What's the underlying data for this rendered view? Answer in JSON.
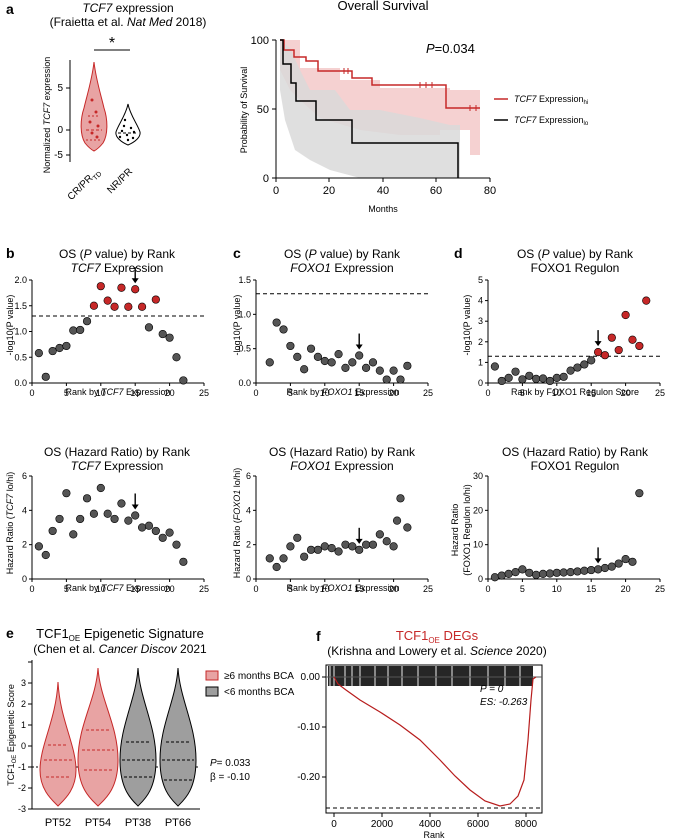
{
  "colors": {
    "red": "#c62828",
    "red_fill": "#e8a3a3",
    "red_band": "#f3c9c9",
    "grey_fill": "#9e9e9e",
    "grey_band": "#d9d9d9",
    "black": "#000000"
  },
  "panels": {
    "a": {
      "letter": "a",
      "violin": {
        "title_italic": "TCF7",
        "title_rest": " expression",
        "citation_pre": "(Fraietta et al. ",
        "citation_journal": "Nat Med",
        "citation_post": " 2018)",
        "significance": "*",
        "ylabel_pre": "Normalized ",
        "ylabel_italic": "TCF7",
        "ylabel_post": " expression",
        "yticks": [
          "-5",
          "0",
          "5"
        ],
        "groups": [
          "CR/PR",
          "NR/PR"
        ],
        "group_sub": "TD"
      },
      "km": {
        "title": "Overall Survival",
        "pvalue_italic": "P",
        "pvalue_rest": "=0.034",
        "ylabel": "Probability of Survival",
        "xlabel": "Months",
        "xticks": [
          "0",
          "20",
          "40",
          "60",
          "80"
        ],
        "yticks": [
          "0",
          "50",
          "100"
        ],
        "legend": [
          {
            "italic": "TCF7",
            "text": " Expression",
            "sub": "hi"
          },
          {
            "italic": "TCF7",
            "text": " Expression",
            "sub": "lo"
          }
        ]
      }
    },
    "b": {
      "letter": "b",
      "top_title": "OS (",
      "top_title_italic": "P",
      "top_title_post": " value) by Rank",
      "top_subtitle_italic": "TCF7",
      "top_subtitle_rest": " Expression",
      "top_ylabel": "-log10(P value)",
      "top_xlabel_pre": "Rank by ",
      "top_xlabel_italic": "TCF7",
      "top_xlabel_post": " Expression",
      "bottom_title": "OS (Hazard Ratio) by Rank",
      "bottom_subtitle_italic": "TCF7",
      "bottom_subtitle_rest": " Expression",
      "bottom_ylabel_pre": "Hazard Ratio (",
      "bottom_ylabel_italic": "TCF7",
      "bottom_ylabel_post": " lo/hi)"
    },
    "c": {
      "letter": "c",
      "top_title": "OS (",
      "top_title_italic": "P",
      "top_title_post": " value) by Rank",
      "top_subtitle_italic": "FOXO1",
      "top_subtitle_rest": " Expression",
      "top_ylabel": "-log10(P value)",
      "top_xlabel_pre": "Rank by ",
      "top_xlabel_italic": "FOXO1",
      "top_xlabel_post": " Expression",
      "bottom_title": "OS (Hazard Ratio) by Rank",
      "bottom_subtitle_italic": "FOXO1",
      "bottom_subtitle_rest": " Expression",
      "bottom_ylabel_pre": "Hazard Ratio (",
      "bottom_ylabel_italic": "FOXO1",
      "bottom_ylabel_post": " lo/hi)"
    },
    "d": {
      "letter": "d",
      "top_title": "OS (",
      "top_title_italic": "P",
      "top_title_post": " value) by Rank",
      "top_subtitle": "FOXO1 Regulon",
      "top_ylabel": "-log10(P value)",
      "top_xlabel": "Rank by FOXO1 Regulon Score",
      "bottom_title": "OS (Hazard Ratio) by Rank",
      "bottom_subtitle": "FOXO1 Regulon",
      "bottom_ylabel_1": "Hazard Ratio",
      "bottom_ylabel_2": "(FOXO1 Regulon lo/hi)"
    },
    "e": {
      "letter": "e",
      "title_pre": "TCF1",
      "title_sub": "OE",
      "title_post": " Epigenetic Signature",
      "citation_pre": "(Chen et al. ",
      "citation_journal": "Cancer Discov",
      "citation_post": " 2021",
      "ylabel_pre": "TCF1",
      "ylabel_sub": "OE",
      "ylabel_post": " Epigenetic Score",
      "legend": [
        "≥6 months BCA",
        "<6 months BCA"
      ],
      "stat_p": "= 0.033",
      "stat_p_italic": "P",
      "stat_beta": "β = -0.10",
      "groups": [
        "PT52",
        "PT54",
        "PT38",
        "PT66"
      ],
      "yticks": [
        "-3",
        "-2",
        "-1",
        "0",
        "1",
        "2",
        "3"
      ]
    },
    "f": {
      "letter": "f",
      "title_pre": "TCF1",
      "title_sub": "OE",
      "title_post": " DEGs",
      "citation_pre": "(Krishna and Lowery et al. ",
      "citation_journal": "Science",
      "citation_post": " 2020)",
      "stat_p": "P = 0",
      "stat_es": "ES: -0.263",
      "xlabel": "Rank",
      "xticks": [
        "0",
        "2000",
        "4000",
        "6000",
        "8000"
      ],
      "yticks": [
        "0.00",
        "-0.10",
        "-0.20"
      ]
    }
  },
  "chart_data": [
    {
      "type": "scatter",
      "id": "b_top",
      "title": "OS (P value) by Rank TCF7 Expression",
      "xlabel": "Rank by TCF7 Expression",
      "ylabel": "-log10(P value)",
      "xlim": [
        0,
        25
      ],
      "ylim": [
        0,
        2.0
      ],
      "xticks": [
        0,
        5,
        10,
        15,
        20,
        25
      ],
      "yticks": [
        0.0,
        0.5,
        1.0,
        1.5,
        2.0
      ],
      "threshold": 1.3,
      "arrow_rank": 15,
      "points": [
        [
          1,
          0.58
        ],
        [
          2,
          0.12
        ],
        [
          3,
          0.62
        ],
        [
          4,
          0.68
        ],
        [
          5,
          0.72
        ],
        [
          6,
          1.02
        ],
        [
          7,
          1.03
        ],
        [
          8,
          1.2
        ],
        [
          9,
          1.5
        ],
        [
          10,
          1.88
        ],
        [
          11,
          1.6
        ],
        [
          12,
          1.48
        ],
        [
          13,
          1.85
        ],
        [
          14,
          1.48
        ],
        [
          15,
          1.82
        ],
        [
          16,
          1.48
        ],
        [
          17,
          1.08
        ],
        [
          18,
          1.62
        ],
        [
          19,
          0.95
        ],
        [
          20,
          0.88
        ],
        [
          21,
          0.5
        ],
        [
          22,
          0.05
        ]
      ],
      "significant_ranks": [
        9,
        10,
        11,
        12,
        13,
        14,
        15,
        16,
        18
      ]
    },
    {
      "type": "scatter",
      "id": "b_bottom",
      "title": "OS (Hazard Ratio) by Rank TCF7 Expression",
      "xlabel": "Rank by TCF7 Expression",
      "ylabel": "Hazard Ratio (TCF7 lo/hi)",
      "xlim": [
        0,
        25
      ],
      "ylim": [
        0,
        6
      ],
      "xticks": [
        0,
        5,
        10,
        15,
        20,
        25
      ],
      "yticks": [
        0,
        2,
        4,
        6
      ],
      "arrow_rank": 15,
      "points": [
        [
          1,
          1.9
        ],
        [
          2,
          1.4
        ],
        [
          3,
          2.8
        ],
        [
          4,
          3.5
        ],
        [
          5,
          5.0
        ],
        [
          6,
          2.6
        ],
        [
          7,
          3.5
        ],
        [
          8,
          4.7
        ],
        [
          9,
          3.8
        ],
        [
          10,
          5.3
        ],
        [
          11,
          3.8
        ],
        [
          12,
          3.5
        ],
        [
          13,
          4.4
        ],
        [
          14,
          3.4
        ],
        [
          15,
          3.7
        ],
        [
          16,
          3.0
        ],
        [
          17,
          3.1
        ],
        [
          18,
          2.8
        ],
        [
          19,
          2.4
        ],
        [
          20,
          2.7
        ],
        [
          21,
          2.0
        ],
        [
          22,
          1.0
        ]
      ]
    },
    {
      "type": "scatter",
      "id": "c_top",
      "title": "OS (P value) by Rank FOXO1 Expression",
      "xlabel": "Rank by FOXO1 Expression",
      "ylabel": "-log10(P value)",
      "xlim": [
        0,
        25
      ],
      "ylim": [
        0,
        1.5
      ],
      "xticks": [
        0,
        5,
        10,
        15,
        20,
        25
      ],
      "yticks": [
        0.0,
        0.5,
        1.0,
        1.5
      ],
      "threshold": 1.3,
      "arrow_rank": 15,
      "points": [
        [
          2,
          0.3
        ],
        [
          3,
          0.88
        ],
        [
          4,
          0.78
        ],
        [
          5,
          0.54
        ],
        [
          6,
          0.38
        ],
        [
          7,
          0.2
        ],
        [
          8,
          0.5
        ],
        [
          9,
          0.38
        ],
        [
          10,
          0.32
        ],
        [
          11,
          0.3
        ],
        [
          12,
          0.42
        ],
        [
          13,
          0.22
        ],
        [
          14,
          0.3
        ],
        [
          15,
          0.4
        ],
        [
          16,
          0.22
        ],
        [
          17,
          0.3
        ],
        [
          18,
          0.18
        ],
        [
          19,
          0.05
        ],
        [
          20,
          0.18
        ],
        [
          21,
          0.05
        ],
        [
          22,
          0.25
        ]
      ]
    },
    {
      "type": "scatter",
      "id": "c_bottom",
      "title": "OS (Hazard Ratio) by Rank FOXO1 Expression",
      "xlabel": "Rank by FOXO1 Expression",
      "ylabel": "Hazard Ratio (FOXO1 lo/hi)",
      "xlim": [
        0,
        25
      ],
      "ylim": [
        0,
        6
      ],
      "xticks": [
        0,
        5,
        10,
        15,
        20,
        25
      ],
      "yticks": [
        0,
        2,
        4,
        6
      ],
      "arrow_rank": 15,
      "points": [
        [
          2,
          1.2
        ],
        [
          3,
          0.7
        ],
        [
          4,
          1.2
        ],
        [
          5,
          1.9
        ],
        [
          6,
          2.4
        ],
        [
          7,
          1.3
        ],
        [
          8,
          1.7
        ],
        [
          9,
          1.7
        ],
        [
          10,
          1.9
        ],
        [
          11,
          1.8
        ],
        [
          12,
          1.6
        ],
        [
          13,
          2.0
        ],
        [
          14,
          1.9
        ],
        [
          15,
          1.7
        ],
        [
          16,
          2.0
        ],
        [
          17,
          2.0
        ],
        [
          18,
          2.6
        ],
        [
          19,
          2.2
        ],
        [
          20,
          1.9
        ],
        [
          21,
          4.7
        ],
        [
          22,
          3.0
        ],
        [
          20.5,
          3.4
        ]
      ]
    },
    {
      "type": "scatter",
      "id": "d_top",
      "title": "OS (P value) by Rank FOXO1 Regulon",
      "xlabel": "Rank by FOXO1 Regulon Score",
      "ylabel": "-log10(P value)",
      "xlim": [
        0,
        25
      ],
      "ylim": [
        0,
        5
      ],
      "xticks": [
        0,
        5,
        10,
        15,
        20,
        25
      ],
      "yticks": [
        0,
        1,
        2,
        3,
        4,
        5
      ],
      "threshold": 1.3,
      "arrow_rank": 16,
      "points": [
        [
          1,
          0.8
        ],
        [
          2,
          0.1
        ],
        [
          3,
          0.25
        ],
        [
          4,
          0.55
        ],
        [
          5,
          0.18
        ],
        [
          6,
          0.35
        ],
        [
          7,
          0.2
        ],
        [
          8,
          0.22
        ],
        [
          9,
          0.1
        ],
        [
          10,
          0.25
        ],
        [
          11,
          0.3
        ],
        [
          12,
          0.6
        ],
        [
          13,
          0.75
        ],
        [
          14,
          0.9
        ],
        [
          15,
          1.1
        ],
        [
          16,
          1.5
        ],
        [
          17,
          1.35
        ],
        [
          18,
          2.2
        ],
        [
          19,
          1.6
        ],
        [
          20,
          3.3
        ],
        [
          21,
          2.1
        ],
        [
          22,
          1.8
        ],
        [
          23,
          4.0
        ]
      ],
      "significant_ranks": [
        16,
        17,
        18,
        19,
        20,
        21,
        22,
        23
      ]
    },
    {
      "type": "scatter",
      "id": "d_bottom",
      "title": "OS (Hazard Ratio) by Rank FOXO1 Regulon",
      "xlabel": "",
      "ylabel": "Hazard Ratio (FOXO1 Regulon lo/hi)",
      "xlim": [
        0,
        25
      ],
      "ylim": [
        0,
        30
      ],
      "xticks": [
        0,
        5,
        10,
        15,
        20,
        25
      ],
      "yticks": [
        0,
        10,
        20,
        30
      ],
      "arrow_rank": 16,
      "points": [
        [
          1,
          0.5
        ],
        [
          2,
          1.0
        ],
        [
          3,
          1.5
        ],
        [
          4,
          2.0
        ],
        [
          5,
          2.8
        ],
        [
          6,
          1.8
        ],
        [
          7,
          1.2
        ],
        [
          8,
          1.5
        ],
        [
          9,
          1.6
        ],
        [
          10,
          1.8
        ],
        [
          11,
          1.9
        ],
        [
          12,
          2.0
        ],
        [
          13,
          2.2
        ],
        [
          14,
          2.4
        ],
        [
          15,
          2.6
        ],
        [
          16,
          2.8
        ],
        [
          17,
          3.2
        ],
        [
          18,
          3.6
        ],
        [
          19,
          4.5
        ],
        [
          20,
          5.8
        ],
        [
          21,
          5.0
        ],
        [
          22,
          25.0
        ]
      ]
    }
  ]
}
